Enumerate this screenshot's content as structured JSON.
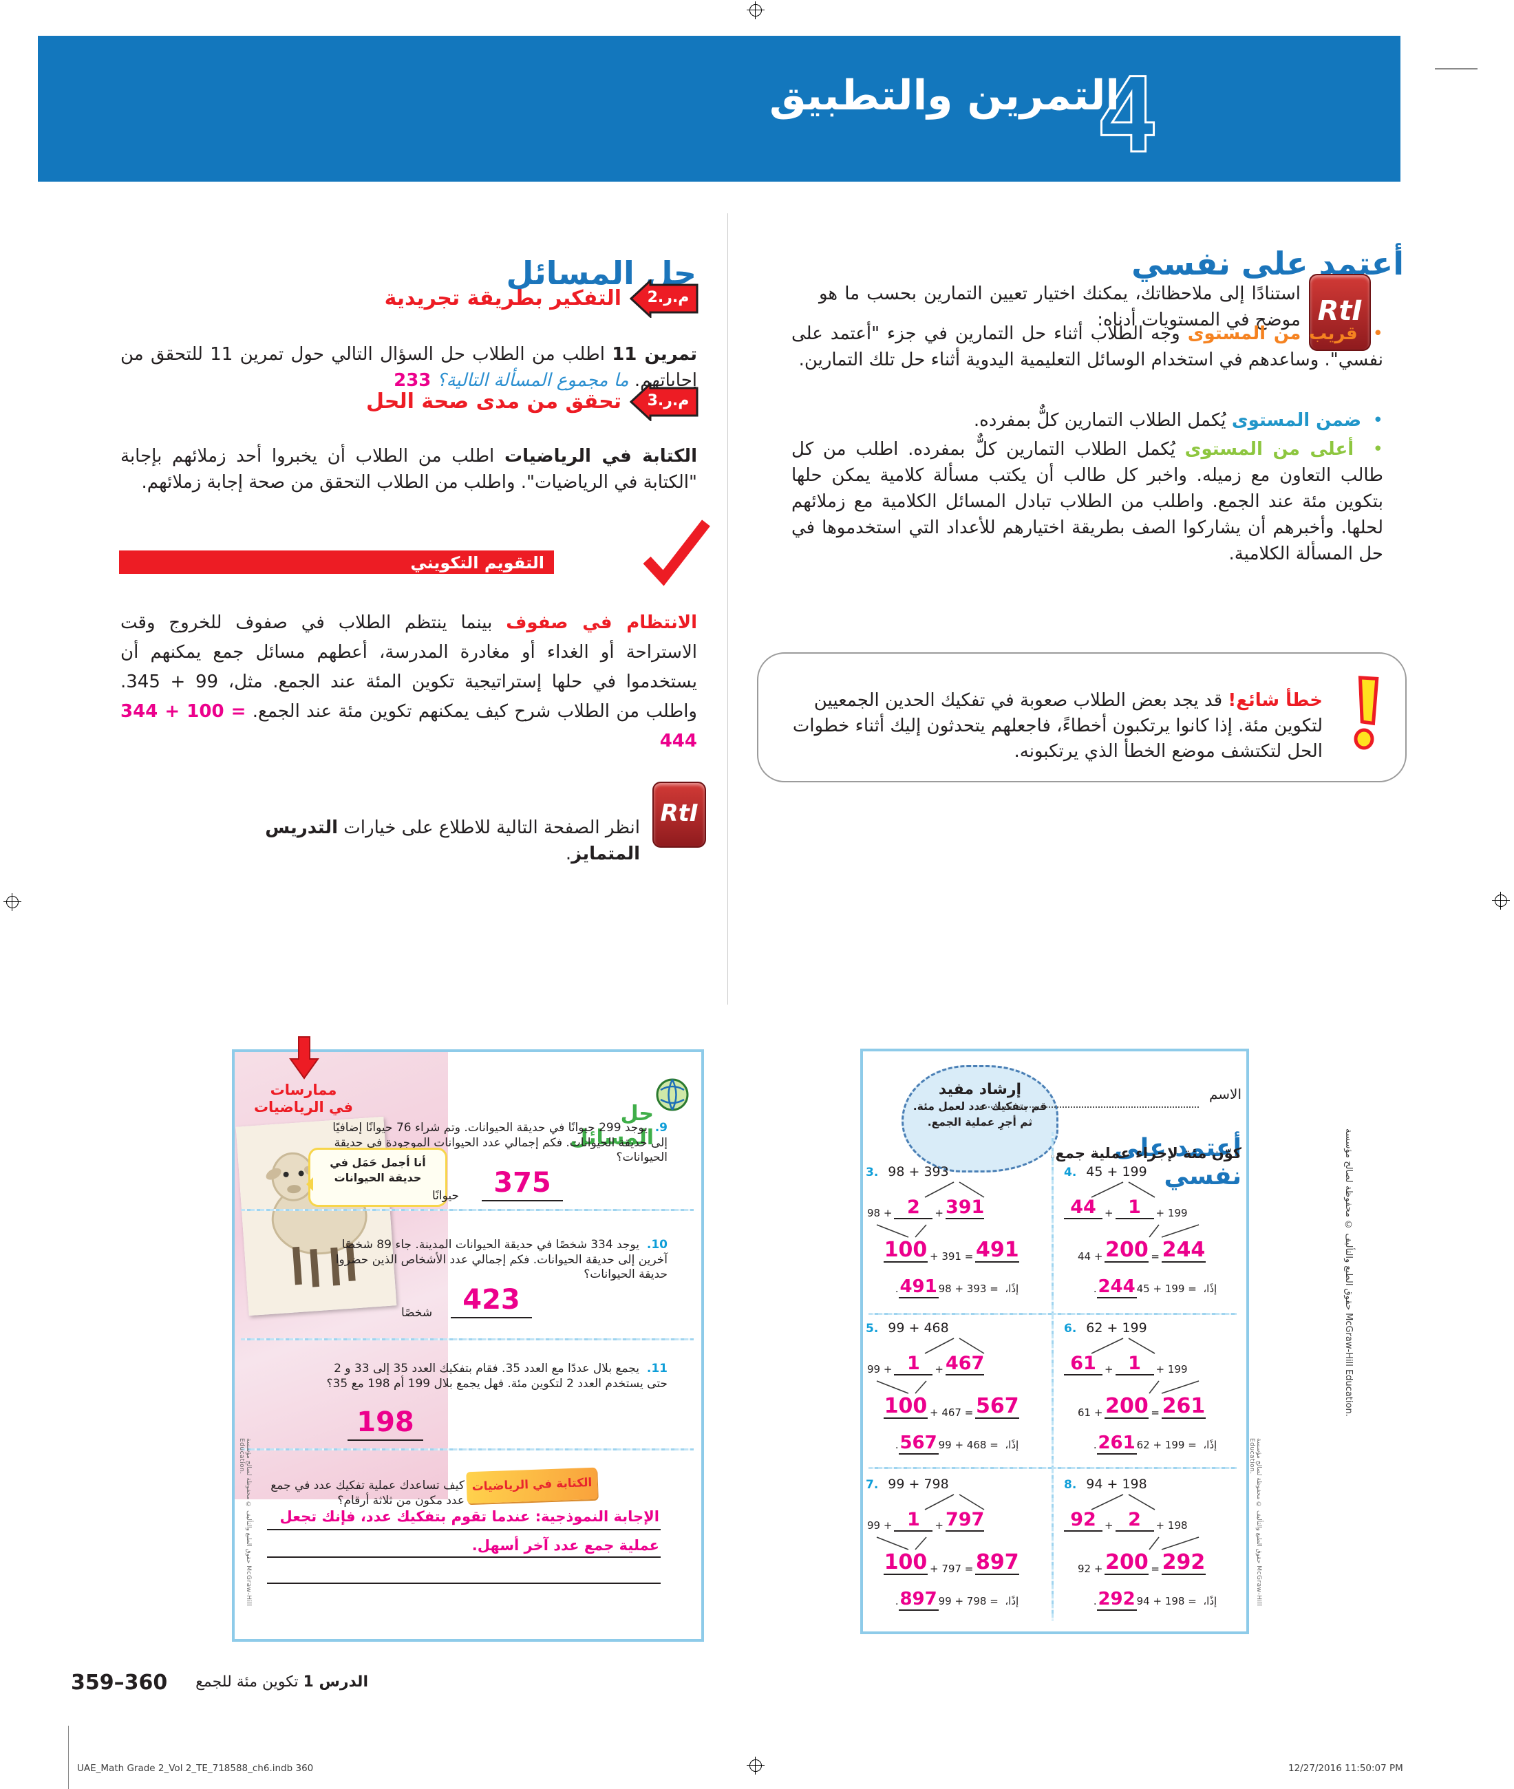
{
  "header": {
    "number": "4",
    "title": "التمرين والتطبيق"
  },
  "left_column": {
    "heading": "حل المسائل",
    "practice2": {
      "badge": "م.ر.2",
      "title": "التفكير بطريقة تجريدية",
      "lead": "تمرين 11",
      "body": " اطلب من الطلاب حل السؤال التالي حول تمرين 11 للتحقق من إجاباتهم. ",
      "question": "ما مجموع المسألة التالية؟",
      "answer": "233"
    },
    "practice3": {
      "badge": "م.ر.3",
      "title": "تحقق من مدى صحة الحل",
      "lead": "الكتابة في الرياضيات",
      "body": " اطلب من الطلاب أن يخبروا أحد زملائهم بإجابة \"الكتابة في الرياضيات\". واطلب من الطلاب التحقق من صحة إجابة زملائهم."
    },
    "formative": {
      "banner": "التقويم التكويني",
      "lead": "الانتظام في صفوف",
      "body": " بينما ينتظم الطلاب في صفوف للخروج وقت الاستراحة أو الغداء أو مغادرة المدرسة، أعطهم مسائل جمع يمكنهم أن يستخدموا في حلها إستراتيجية تكوين المئة عند الجمع. مثل، 99 + 345. واطلب من الطلاب شرح كيف يمكنهم تكوين مئة عند الجمع. ",
      "equation": "344 + 100 = 444"
    },
    "rti_note": {
      "badge": "RtI",
      "text": "انظر الصفحة التالية للاطلاع على خيارات ",
      "bold": "التدريس المتمايز",
      "suffix": "."
    }
  },
  "right_column": {
    "heading": "أعتمد على نفسي",
    "rti_badge": "RtI",
    "intro": "استنادًا إلى ملاحظاتك، يمكنك اختيار تعيين التمارين بحسب ما هو موضح في المستويات أدناه:",
    "levels": [
      {
        "label": "قريب من المستوى",
        "color": "#f58220",
        "text": "وجه الطلاب أثناء حل التمارين في جزء \"أعتمد على نفسي\". وساعدهم في استخدام الوسائل التعليمية اليدوية أثناء حل تلك التمارين."
      },
      {
        "label": "ضمن المستوى",
        "color": "#2196c9",
        "text": "يُكمل الطلاب التمارين كلٌّ بمفرده."
      },
      {
        "label": "أعلى من المستوى",
        "color": "#8dc63f",
        "text": "يُكمل الطلاب التمارين كلٌّ بمفرده. اطلب من كل طالب التعاون مع زميله. واخبر كل طالب أن يكتب مسألة كلامية يمكن حلها بتكوين مئة عند الجمع. واطلب من الطلاب تبادل المسائل الكلامية مع زملائهم لحلها. وأخبرهم أن يشاركوا الصف بطريقة اختيارهم للأعداد التي استخدموها في حل المسألة الكلامية."
      }
    ],
    "common_error": {
      "label": "خطأ شائع!",
      "text": "قد يجد بعض الطلاب صعوبة في تفكيك الحدين الجمعيين لتكوين مئة. إذا كانوا يرتكبون أخطاءً، فاجعلهم يتحدثون إليك أثناء خطوات الحل لتكتشف موضع الخطأ الذي يرتكبونه."
    }
  },
  "student_left": {
    "practices_label_1": "ممارسات",
    "practices_label_2": "في الرياضيات",
    "heading": "حل المسائل",
    "bubble_1": "أنا أجمل حَمَل في",
    "bubble_2": "حديقة الحيوانات",
    "problems": [
      {
        "num": "9.",
        "text": "يوجد 299 حيوانًا في حديقة الحيوانات. وتم شراء 76 حيوانًا إضافيًا إلى حديقة الحيوانات. فكم إجمالي عدد الحيوانات الموجودة في حديقة الحيوانات؟",
        "answer": "375",
        "unit": "حيوانًا"
      },
      {
        "num": "10.",
        "text": "يوجد 334 شخصًا في حديقة الحيوانات المدينة. جاء 89 شخصًا آخرين إلى حديقة الحيوانات. فكم إجمالي عدد الأشخاص الذين حضروا حديقة الحيوانات؟",
        "answer": "423",
        "unit": "شخصًا"
      },
      {
        "num": "11.",
        "text": "يجمع بلال عددًا مع العدد 35. فقام بتفكيك العدد 35 إلى 33 و 2 حتى يستخدم العدد 2 لتكوين مئة. فهل يجمع بلال 199 أم 198 مع 35؟",
        "answer": "198",
        "unit": ""
      }
    ],
    "writing": {
      "badge": "الكتابة في الرياضيات",
      "question": "كيف تساعدك عملية تفكيك عدد في جمع عدد مكون من ثلاثة أرقام؟",
      "answer_line1": "الإجابة النموذجية: عندما تقوم بتفكيك عدد، فإنك تجعل",
      "answer_line2": "عملية جمع عدد آخر أسهل."
    }
  },
  "student_right": {
    "hint_title": "إرشاد مفيد",
    "hint_line1": "قم بتفكيك عدد لعمل مئة.",
    "hint_line2": "ثم أجرِ عملية الجمع.",
    "name_label": "الاسم",
    "heading": "أعتمد على نفسي",
    "subheading": "كوّن مئة لإجراء عملية جمع.",
    "so_word": "إذًا،",
    "problems": [
      {
        "num": "3.",
        "expr": "98 + 393",
        "variant": "right",
        "row2_pre": "98 +",
        "blank1": "2",
        "blank2": "391",
        "row2_post": "",
        "row3_pre": "",
        "row3_blank": "100",
        "row3_mid": "+ 391 =",
        "row3_result": "491",
        "final_expr": "98 + 393 =",
        "final_result": "491"
      },
      {
        "num": "4.",
        "expr": "45 + 199",
        "variant": "left",
        "row2_pre": "",
        "blank1": "44",
        "blank2": "1",
        "row2_post": "+ 199",
        "row3_pre": "44 +",
        "row3_blank": "200",
        "row3_mid": "=",
        "row3_result": "244",
        "final_expr": "45 + 199 =",
        "final_result": "244"
      },
      {
        "num": "5.",
        "expr": "99 + 468",
        "variant": "right",
        "row2_pre": "99 +",
        "blank1": "1",
        "blank2": "467",
        "row2_post": "",
        "row3_pre": "",
        "row3_blank": "100",
        "row3_mid": "+ 467 =",
        "row3_result": "567",
        "final_expr": "99 + 468 =",
        "final_result": "567"
      },
      {
        "num": "6.",
        "expr": "62 + 199",
        "variant": "left",
        "row2_pre": "",
        "blank1": "61",
        "blank2": "1",
        "row2_post": "+ 199",
        "row3_pre": "61 +",
        "row3_blank": "200",
        "row3_mid": "=",
        "row3_result": "261",
        "final_expr": "62 + 199 =",
        "final_result": "261"
      },
      {
        "num": "7.",
        "expr": "99 + 798",
        "variant": "right",
        "row2_pre": "99 +",
        "blank1": "1",
        "blank2": "797",
        "row2_post": "",
        "row3_pre": "",
        "row3_blank": "100",
        "row3_mid": "+ 797 =",
        "row3_result": "897",
        "final_expr": "99 + 798 =",
        "final_result": "897"
      },
      {
        "num": "8.",
        "expr": "94 + 198",
        "variant": "left",
        "row2_pre": "",
        "blank1": "92",
        "blank2": "2",
        "row2_post": "+ 198",
        "row3_pre": "92 +",
        "row3_blank": "200",
        "row3_mid": "=",
        "row3_result": "292",
        "final_expr": "94 + 198 =",
        "final_result": "292"
      }
    ]
  },
  "copyright_side": "حقوق الطبع والتأليف © محفوظة لصالح مؤسسة McGraw-Hill Education.",
  "page_footer": {
    "pages": "359–360",
    "lesson_bold": "الدرس 1",
    "lesson_rest": " تكوين مئة للجمع"
  },
  "print_line": {
    "left": "UAE_Math Grade 2_Vol 2_TE_718588_ch6.indb   360",
    "right": "12/27/2016   11:50:07 PM"
  }
}
